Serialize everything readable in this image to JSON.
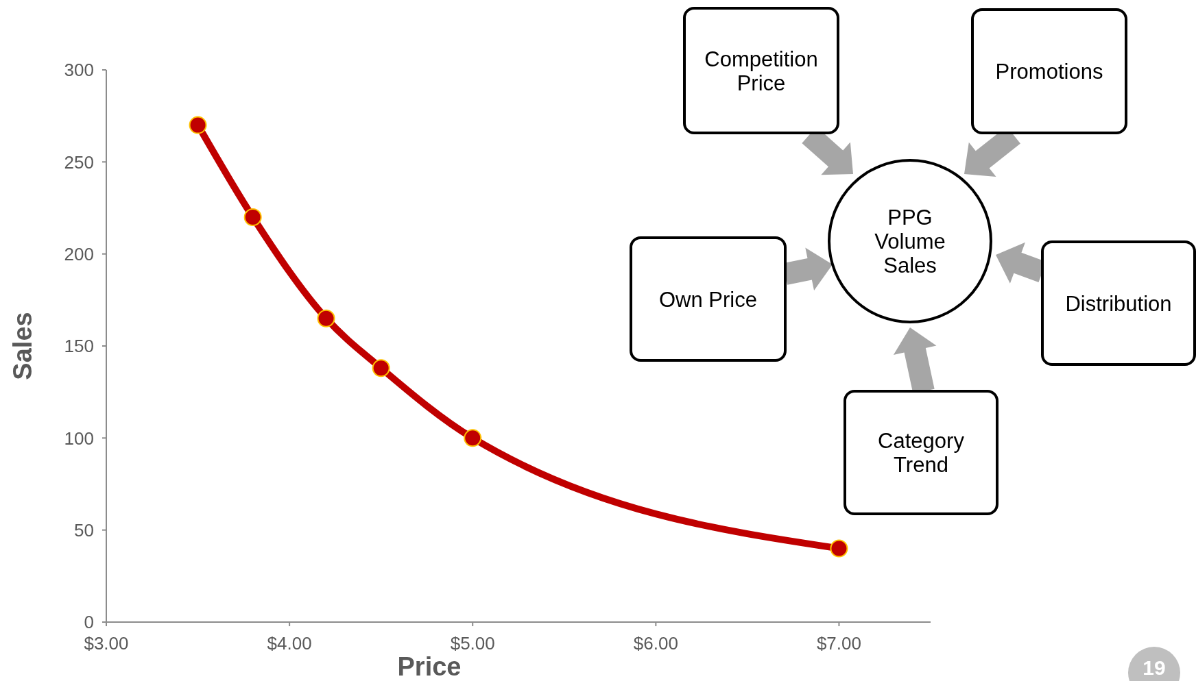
{
  "chart_data": [
    {
      "type": "line",
      "xlabel": "Price",
      "ylabel": "Sales",
      "xlim": [
        3,
        7.5
      ],
      "xticks": [
        {
          "value": 3,
          "label": "$3.00"
        },
        {
          "value": 4,
          "label": "$4.00"
        },
        {
          "value": 5,
          "label": "$5.00"
        },
        {
          "value": 6,
          "label": "$6.00"
        },
        {
          "value": 7,
          "label": "$7.00"
        }
      ],
      "ylim": [
        0,
        300
      ],
      "yticks": [
        0,
        50,
        100,
        150,
        200,
        250,
        300
      ],
      "grid": false,
      "legend": false,
      "marker": "circle",
      "line_style": "solid",
      "x": [
        3.5,
        3.8,
        4.2,
        4.5,
        5.0,
        7.0
      ],
      "series": [
        {
          "color": "#c00000",
          "values": [
            270,
            220,
            165,
            138,
            100,
            40
          ]
        }
      ],
      "annotations": [
        "19"
      ]
    },
    {
      "type": "other",
      "annotations": [
        "Competition Price",
        "Promotions",
        "PPG Volume Sales",
        "Own Price",
        "Distribution",
        "Category Trend"
      ]
    }
  ]
}
